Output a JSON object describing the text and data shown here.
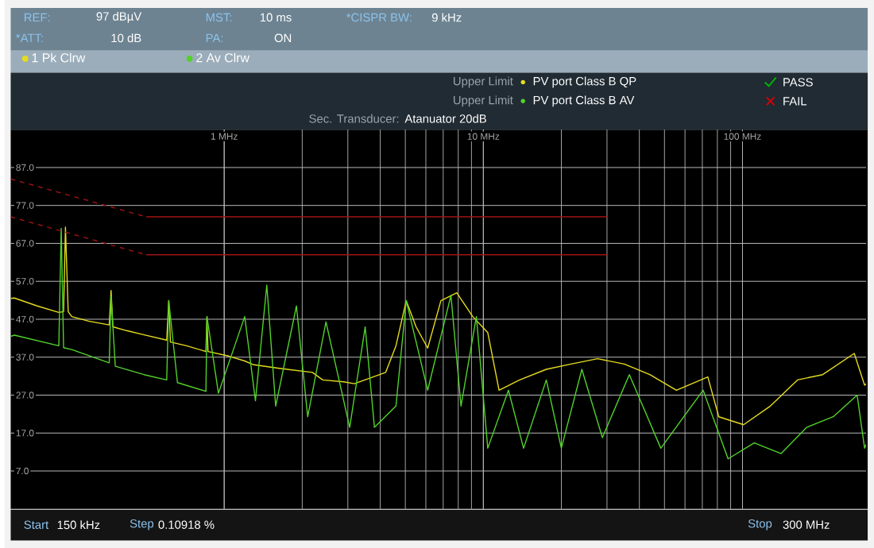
{
  "chart_data": {
    "type": "line",
    "xlim": [
      0.15,
      300
    ],
    "ylim": [
      -3,
      97
    ],
    "log": "x",
    "xticks": [
      {
        "value": 1,
        "label": "1 MHz"
      },
      {
        "value": 10,
        "label": "10 MHz"
      },
      {
        "value": 100,
        "label": "100 MHz"
      }
    ],
    "yticks": [
      {
        "value": 87,
        "label": "87.0"
      },
      {
        "value": 77,
        "label": "77.0"
      },
      {
        "value": 67,
        "label": "67.0"
      },
      {
        "value": 57,
        "label": "57.0"
      },
      {
        "value": 47,
        "label": "47.0"
      },
      {
        "value": 37,
        "label": "37.0"
      },
      {
        "value": 27,
        "label": "27.0"
      },
      {
        "value": 17,
        "label": "17.0"
      },
      {
        "value": 7,
        "label": "7.0"
      }
    ],
    "grid": true,
    "legend": "top left",
    "series": [
      {
        "name": "1 Pk Clrw",
        "color": "#e6dc1e",
        "line_style": "solid",
        "x": [
          0.15,
          0.155,
          0.19,
          0.23,
          0.24,
          0.244,
          0.25,
          0.258,
          0.3,
          0.36,
          0.366,
          0.372,
          0.42,
          0.484,
          0.6,
          0.611,
          0.62,
          0.716,
          0.85,
          0.858,
          0.866,
          1.04,
          1.2,
          1.3,
          1.65,
          2.19,
          2.4,
          2.89,
          3.18,
          4.2,
          4.6,
          5.04,
          5.5,
          6.1,
          6.86,
          7.9,
          9.1,
          10.4,
          11.5,
          13.8,
          17.5,
          21.8,
          27.6,
          35,
          43.9,
          55.6,
          73.5,
          81,
          101,
          128,
          163,
          204,
          270,
          296,
          300
        ],
        "values": [
          52.5,
          52.6,
          50.5,
          48.8,
          49,
          71.3,
          49,
          47.7,
          46.5,
          45.5,
          54.6,
          45,
          44,
          43,
          41.5,
          51.9,
          41,
          40,
          38.5,
          47.7,
          38.5,
          37.3,
          36,
          35,
          34,
          33,
          31,
          30.5,
          30,
          33,
          40,
          51.9,
          45,
          39.4,
          51.9,
          54,
          47.7,
          43.5,
          28.3,
          31,
          33.8,
          35.2,
          36.6,
          35.2,
          32.4,
          28.3,
          31.8,
          21.3,
          19.2,
          24.1,
          31,
          32.4,
          38,
          29.6,
          30
        ]
      },
      {
        "name": "2 Av Clrw",
        "color": "#52d22a",
        "line_style": "solid",
        "x": [
          0.15,
          0.155,
          0.23,
          0.235,
          0.24,
          0.258,
          0.36,
          0.366,
          0.38,
          0.49,
          0.6,
          0.611,
          0.66,
          0.85,
          0.858,
          0.95,
          1.2,
          1.32,
          1.46,
          1.58,
          1.9,
          2.1,
          2.47,
          3.05,
          3.5,
          3.8,
          4.6,
          5.04,
          6.1,
          7.5,
          8.2,
          9.4,
          10.4,
          12.5,
          14.3,
          17.5,
          20,
          24,
          28.8,
          36.6,
          48.4,
          70.5,
          88,
          111,
          141,
          177,
          224,
          277,
          296,
          300
        ],
        "values": [
          42.5,
          42.8,
          40,
          71,
          39.5,
          39,
          35.5,
          53,
          34.6,
          32.4,
          31,
          51.9,
          30.3,
          28,
          47.7,
          27.5,
          47.7,
          25.5,
          56,
          24.1,
          50.5,
          21.3,
          46.3,
          18.5,
          45,
          18.5,
          24.1,
          51.9,
          28.3,
          53.3,
          24.1,
          47.7,
          13,
          28.3,
          13,
          31,
          13,
          33.8,
          15.8,
          32.4,
          13,
          28.3,
          10.2,
          14.4,
          11.6,
          18.5,
          21.3,
          27,
          13,
          14
        ]
      },
      {
        "color": "#a01414",
        "line_style": "dashed",
        "x": [
          0.15,
          0.5
        ],
        "values": [
          84,
          74
        ]
      },
      {
        "color": "#a01414",
        "line_style": "solid",
        "x": [
          0.5,
          30
        ],
        "values": [
          74,
          74
        ]
      },
      {
        "color": "#a01414",
        "line_style": "dashed",
        "x": [
          0.15,
          0.5
        ],
        "values": [
          74,
          64
        ]
      },
      {
        "color": "#a01414",
        "line_style": "solid",
        "x": [
          0.5,
          30
        ],
        "values": [
          64,
          64
        ]
      }
    ],
    "annotations": [
      "REF:",
      "97 dBµV",
      "*ATT:",
      "10 dB",
      "MST:",
      "10 ms",
      "PA:",
      "ON",
      "*CISPR BW:",
      "9 kHz",
      "Upper Limit",
      "PV port Class B QP",
      "Upper Limit",
      "PV port Class B AV",
      "PASS",
      "FAIL",
      "Sec. Transducer:",
      "Atanuator 20dB",
      "Start",
      "150 kHz",
      "Step",
      "0.10918 %",
      "Stop",
      "300 MHz"
    ]
  }
}
